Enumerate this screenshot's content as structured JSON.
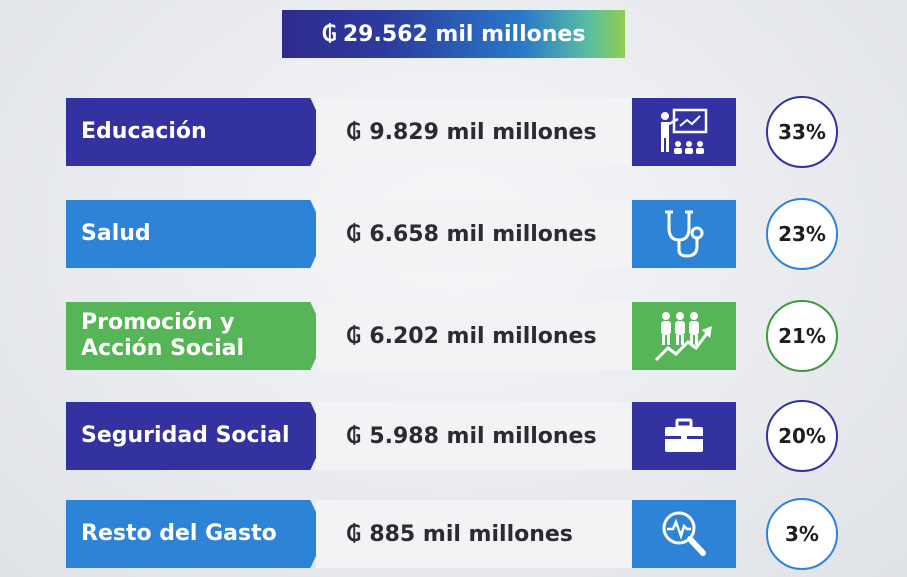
{
  "total": {
    "currency": "₲",
    "amount": "29.562 mil millones"
  },
  "rows": [
    {
      "label": "Educación",
      "currency": "₲",
      "amount": "9.829 mil millones",
      "percent": "33%",
      "icon": "teacher-classroom-icon",
      "color": "#3431a0"
    },
    {
      "label": "Salud",
      "currency": "₲",
      "amount": "6.658 mil millones",
      "percent": "23%",
      "icon": "stethoscope-icon",
      "color": "#2d83d6"
    },
    {
      "label": "Promoción y\nAcción Social",
      "currency": "₲",
      "amount": "6.202 mil millones",
      "percent": "21%",
      "icon": "people-growth-icon",
      "color": "#56b556"
    },
    {
      "label": "Seguridad Social",
      "currency": "₲",
      "amount": "5.988 mil millones",
      "percent": "20%",
      "icon": "briefcase-icon",
      "color": "#3431a0"
    },
    {
      "label": "Resto del Gasto",
      "currency": "₲",
      "amount": "885 mil millones",
      "percent": "3%",
      "icon": "magnifier-pulse-icon",
      "color": "#2d83d6"
    }
  ]
}
